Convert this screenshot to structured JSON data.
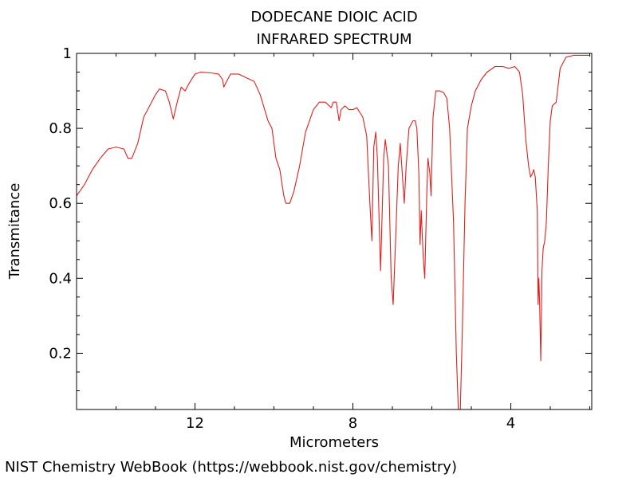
{
  "chart_data": {
    "type": "line",
    "title": "DODECANE DIOIC ACID",
    "subtitle": "INFRARED SPECTRUM",
    "xlabel": "Micrometers",
    "ylabel": "Transmitance",
    "xlim": [
      15.0,
      1.95
    ],
    "ylim": [
      0.05,
      1.0
    ],
    "x_ticks": [
      12,
      8,
      4
    ],
    "x_tick_labels": [
      "12",
      "8",
      "4"
    ],
    "y_ticks": [
      0.2,
      0.4,
      0.6,
      0.8,
      1.0
    ],
    "y_tick_labels": [
      "0.2",
      "0.4",
      "0.6",
      "0.8",
      "1"
    ],
    "grid": false,
    "line_color": "#e0201e",
    "series": [
      {
        "points": [
          [
            15.0,
            0.62
          ],
          [
            14.8,
            0.65
          ],
          [
            14.6,
            0.69
          ],
          [
            14.4,
            0.72
          ],
          [
            14.2,
            0.745
          ],
          [
            14.0,
            0.75
          ],
          [
            13.8,
            0.745
          ],
          [
            13.7,
            0.72
          ],
          [
            13.6,
            0.72
          ],
          [
            13.45,
            0.76
          ],
          [
            13.3,
            0.83
          ],
          [
            13.1,
            0.87
          ],
          [
            13.0,
            0.89
          ],
          [
            12.9,
            0.905
          ],
          [
            12.75,
            0.9
          ],
          [
            12.65,
            0.87
          ],
          [
            12.55,
            0.825
          ],
          [
            12.45,
            0.87
          ],
          [
            12.35,
            0.91
          ],
          [
            12.25,
            0.9
          ],
          [
            12.15,
            0.92
          ],
          [
            12.0,
            0.945
          ],
          [
            11.85,
            0.95
          ],
          [
            11.6,
            0.948
          ],
          [
            11.4,
            0.945
          ],
          [
            11.3,
            0.93
          ],
          [
            11.27,
            0.91
          ],
          [
            11.2,
            0.925
          ],
          [
            11.1,
            0.945
          ],
          [
            10.9,
            0.945
          ],
          [
            10.7,
            0.935
          ],
          [
            10.5,
            0.925
          ],
          [
            10.35,
            0.89
          ],
          [
            10.15,
            0.82
          ],
          [
            10.05,
            0.8
          ],
          [
            9.95,
            0.72
          ],
          [
            9.85,
            0.69
          ],
          [
            9.75,
            0.62
          ],
          [
            9.7,
            0.6
          ],
          [
            9.6,
            0.6
          ],
          [
            9.5,
            0.63
          ],
          [
            9.35,
            0.7
          ],
          [
            9.2,
            0.79
          ],
          [
            9.0,
            0.85
          ],
          [
            8.85,
            0.87
          ],
          [
            8.7,
            0.87
          ],
          [
            8.55,
            0.855
          ],
          [
            8.5,
            0.87
          ],
          [
            8.42,
            0.87
          ],
          [
            8.35,
            0.82
          ],
          [
            8.3,
            0.85
          ],
          [
            8.2,
            0.86
          ],
          [
            8.1,
            0.85
          ],
          [
            8.0,
            0.85
          ],
          [
            7.9,
            0.855
          ],
          [
            7.75,
            0.83
          ],
          [
            7.65,
            0.78
          ],
          [
            7.57,
            0.6
          ],
          [
            7.52,
            0.5
          ],
          [
            7.47,
            0.75
          ],
          [
            7.42,
            0.79
          ],
          [
            7.38,
            0.72
          ],
          [
            7.3,
            0.42
          ],
          [
            7.22,
            0.72
          ],
          [
            7.18,
            0.77
          ],
          [
            7.1,
            0.7
          ],
          [
            7.03,
            0.4
          ],
          [
            6.98,
            0.33
          ],
          [
            6.92,
            0.5
          ],
          [
            6.85,
            0.7
          ],
          [
            6.8,
            0.76
          ],
          [
            6.75,
            0.68
          ],
          [
            6.7,
            0.6
          ],
          [
            6.65,
            0.7
          ],
          [
            6.58,
            0.8
          ],
          [
            6.48,
            0.82
          ],
          [
            6.42,
            0.82
          ],
          [
            6.38,
            0.8
          ],
          [
            6.33,
            0.68
          ],
          [
            6.3,
            0.49
          ],
          [
            6.27,
            0.58
          ],
          [
            6.22,
            0.46
          ],
          [
            6.18,
            0.4
          ],
          [
            6.13,
            0.62
          ],
          [
            6.1,
            0.72
          ],
          [
            6.05,
            0.68
          ],
          [
            6.02,
            0.62
          ],
          [
            5.97,
            0.83
          ],
          [
            5.9,
            0.9
          ],
          [
            5.8,
            0.9
          ],
          [
            5.7,
            0.895
          ],
          [
            5.62,
            0.88
          ],
          [
            5.55,
            0.8
          ],
          [
            5.45,
            0.55
          ],
          [
            5.38,
            0.2
          ],
          [
            5.33,
            0.05
          ],
          [
            5.28,
            0.05
          ],
          [
            5.23,
            0.25
          ],
          [
            5.16,
            0.6
          ],
          [
            5.1,
            0.8
          ],
          [
            5.0,
            0.86
          ],
          [
            4.9,
            0.9
          ],
          [
            4.75,
            0.93
          ],
          [
            4.6,
            0.95
          ],
          [
            4.4,
            0.965
          ],
          [
            4.2,
            0.965
          ],
          [
            4.05,
            0.96
          ],
          [
            3.9,
            0.965
          ],
          [
            3.78,
            0.95
          ],
          [
            3.7,
            0.89
          ],
          [
            3.62,
            0.77
          ],
          [
            3.55,
            0.7
          ],
          [
            3.5,
            0.67
          ],
          [
            3.45,
            0.68
          ],
          [
            3.42,
            0.69
          ],
          [
            3.38,
            0.67
          ],
          [
            3.33,
            0.58
          ],
          [
            3.31,
            0.33
          ],
          [
            3.29,
            0.4
          ],
          [
            3.27,
            0.33
          ],
          [
            3.24,
            0.18
          ],
          [
            3.21,
            0.42
          ],
          [
            3.18,
            0.48
          ],
          [
            3.14,
            0.5
          ],
          [
            3.1,
            0.55
          ],
          [
            3.05,
            0.7
          ],
          [
            3.0,
            0.82
          ],
          [
            2.95,
            0.86
          ],
          [
            2.85,
            0.87
          ],
          [
            2.75,
            0.96
          ],
          [
            2.6,
            0.99
          ],
          [
            2.4,
            0.995
          ],
          [
            2.2,
            0.995
          ],
          [
            2.0,
            0.995
          ]
        ]
      }
    ]
  },
  "footer": "NIST Chemistry WebBook (https://webbook.nist.gov/chemistry)"
}
